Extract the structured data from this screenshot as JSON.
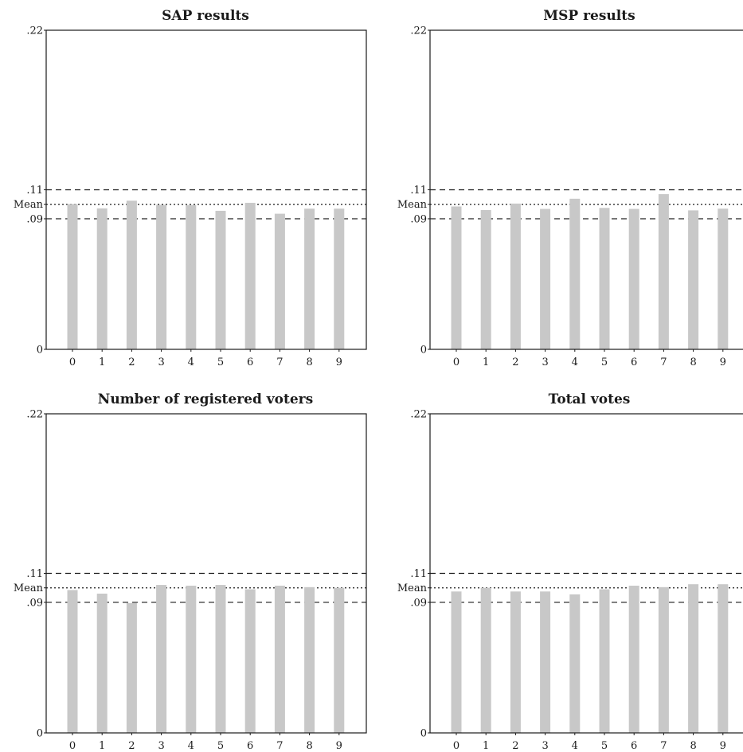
{
  "chart_data": [
    {
      "type": "bar",
      "title": "SAP results",
      "categories": [
        "0",
        "1",
        "2",
        "3",
        "4",
        "5",
        "6",
        "7",
        "8",
        "9"
      ],
      "values": [
        0.1002,
        0.0972,
        0.1025,
        0.0996,
        0.0995,
        0.0955,
        0.101,
        0.0935,
        0.097,
        0.097
      ],
      "ylim": [
        0,
        0.22
      ],
      "yticks": [
        {
          "value": 0,
          "label": "0"
        },
        {
          "value": 0.09,
          "label": ".09"
        },
        {
          "value": 0.1,
          "label": "Mean"
        },
        {
          "value": 0.11,
          "label": ".11"
        },
        {
          "value": 0.22,
          "label": ".22"
        }
      ],
      "reference_lines": [
        {
          "value": 0.11,
          "style": "dashed"
        },
        {
          "value": 0.1,
          "style": "dotted"
        },
        {
          "value": 0.09,
          "style": "dashed"
        }
      ],
      "xlabel": "",
      "ylabel": "",
      "grid": false
    },
    {
      "type": "bar",
      "title": "MSP results",
      "categories": [
        "0",
        "1",
        "2",
        "3",
        "4",
        "5",
        "6",
        "7",
        "8",
        "9"
      ],
      "values": [
        0.0985,
        0.096,
        0.1005,
        0.0968,
        0.1038,
        0.0975,
        0.0968,
        0.107,
        0.0958,
        0.097
      ],
      "ylim": [
        0,
        0.22
      ],
      "yticks": [
        {
          "value": 0,
          "label": "0"
        },
        {
          "value": 0.09,
          "label": ".09"
        },
        {
          "value": 0.1,
          "label": "Mean"
        },
        {
          "value": 0.11,
          "label": ".11"
        },
        {
          "value": 0.22,
          "label": ".22"
        }
      ],
      "reference_lines": [
        {
          "value": 0.11,
          "style": "dashed"
        },
        {
          "value": 0.1,
          "style": "dotted"
        },
        {
          "value": 0.09,
          "style": "dashed"
        }
      ],
      "xlabel": "",
      "ylabel": "",
      "grid": false
    },
    {
      "type": "bar",
      "title": "Number of registered voters",
      "categories": [
        "0",
        "1",
        "2",
        "3",
        "4",
        "5",
        "6",
        "7",
        "8",
        "9"
      ],
      "values": [
        0.0985,
        0.096,
        0.0895,
        0.102,
        0.1015,
        0.102,
        0.099,
        0.1015,
        0.1005,
        0.1
      ],
      "ylim": [
        0,
        0.22
      ],
      "yticks": [
        {
          "value": 0,
          "label": "0"
        },
        {
          "value": 0.09,
          "label": ".09"
        },
        {
          "value": 0.1,
          "label": "Mean"
        },
        {
          "value": 0.11,
          "label": ".11"
        },
        {
          "value": 0.22,
          "label": ".22"
        }
      ],
      "reference_lines": [
        {
          "value": 0.11,
          "style": "dashed"
        },
        {
          "value": 0.1,
          "style": "dotted"
        },
        {
          "value": 0.09,
          "style": "dashed"
        }
      ],
      "xlabel": "",
      "ylabel": "",
      "grid": false
    },
    {
      "type": "bar",
      "title": "Total votes",
      "categories": [
        "0",
        "1",
        "2",
        "3",
        "4",
        "5",
        "6",
        "7",
        "8",
        "9"
      ],
      "values": [
        0.0975,
        0.1,
        0.0975,
        0.0975,
        0.0955,
        0.099,
        0.1015,
        0.1005,
        0.1025,
        0.1025
      ],
      "ylim": [
        0,
        0.22
      ],
      "yticks": [
        {
          "value": 0,
          "label": "0"
        },
        {
          "value": 0.09,
          "label": ".09"
        },
        {
          "value": 0.1,
          "label": "Mean"
        },
        {
          "value": 0.11,
          "label": ".11"
        },
        {
          "value": 0.22,
          "label": ".22"
        }
      ],
      "reference_lines": [
        {
          "value": 0.11,
          "style": "dashed"
        },
        {
          "value": 0.1,
          "style": "dotted"
        },
        {
          "value": 0.09,
          "style": "dashed"
        }
      ],
      "xlabel": "",
      "ylabel": "",
      "grid": false
    }
  ],
  "colors": {
    "bar": "#c8c8c8",
    "ink": "#1a1a1a",
    "background": "#ffffff"
  }
}
